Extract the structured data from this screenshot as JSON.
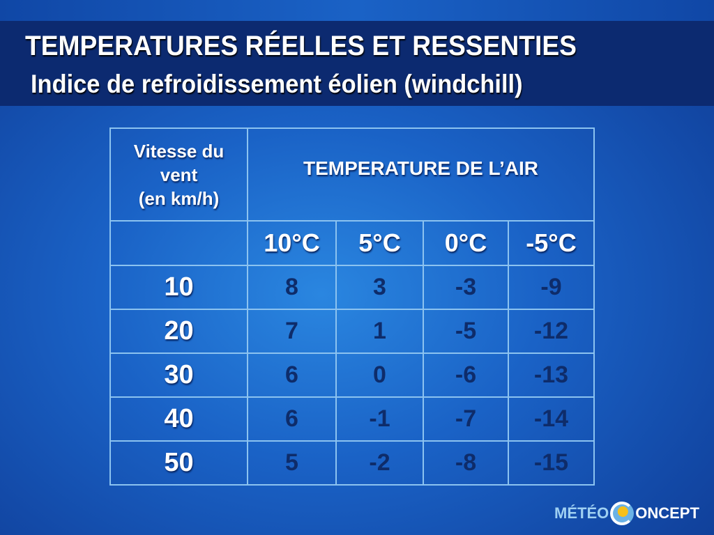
{
  "header": {
    "title": "TEMPERATURES RÉELLES ET RESSENTIES",
    "subtitle": "Indice de refroidissement éolien (windchill)"
  },
  "chart_data": {
    "type": "table",
    "row_header": "Vitesse du vent (en km/h)",
    "row_header_lines": [
      "Vitesse du",
      "vent",
      "(en km/h)"
    ],
    "column_group": "TEMPERATURE DE L’AIR",
    "columns": [
      "10°C",
      "5°C",
      "0°C",
      "-5°C"
    ],
    "rows": [
      {
        "speed": "10",
        "values": [
          "8",
          "3",
          "-3",
          "-9"
        ]
      },
      {
        "speed": "20",
        "values": [
          "7",
          "1",
          "-5",
          "-12"
        ]
      },
      {
        "speed": "30",
        "values": [
          "6",
          "0",
          "-6",
          "-13"
        ]
      },
      {
        "speed": "40",
        "values": [
          "6",
          "-1",
          "-7",
          "-14"
        ]
      },
      {
        "speed": "50",
        "values": [
          "5",
          "-2",
          "-8",
          "-15"
        ]
      }
    ]
  },
  "logo": {
    "part1": "MÉTÉO",
    "part2": "ONCEPT"
  },
  "colors": {
    "band": "#0c2a70",
    "background": "#1a62c6",
    "value_text": "#0e2c6a",
    "grid": "#8cc3f0"
  }
}
